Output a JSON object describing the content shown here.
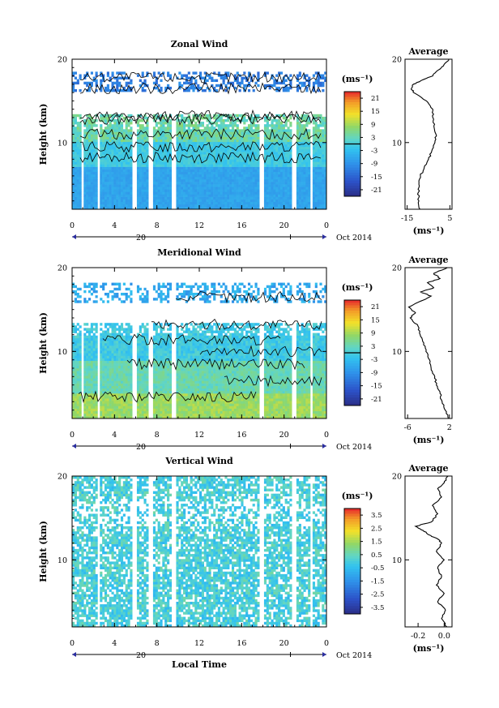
{
  "chart_data": [
    {
      "type": "heatmap",
      "title": "Zonal Wind",
      "ylabel": "Height (km)",
      "xlim": [
        0,
        24
      ],
      "ylim": [
        2,
        20
      ],
      "x_ticks": [
        "0",
        "4",
        "8",
        "12",
        "16",
        "20",
        "0"
      ],
      "y_ticks": [
        "10",
        "20"
      ],
      "date_ticks": [
        "20"
      ],
      "date_suffix": "Oct 2014",
      "colorbar": {
        "unit": "(ms⁻¹)",
        "ticks": [
          "21",
          "15",
          "9",
          "3",
          "-3",
          "-9",
          "-15",
          "-21"
        ],
        "range": [
          -24,
          24
        ],
        "contour_at": 0
      },
      "gaps_hours": [
        [
          0.85,
          1.05
        ],
        [
          2.3,
          2.6
        ],
        [
          5.6,
          6.1
        ],
        [
          7.3,
          7.6
        ],
        [
          9.3,
          9.9
        ],
        [
          17.6,
          18.0
        ],
        [
          20.8,
          21.1
        ],
        [
          22.4,
          22.7
        ]
      ],
      "profile": {
        "title": "Average",
        "xlabel": "(ms⁻¹)",
        "x_ticks": [
          "-15",
          "5"
        ],
        "y_ticks": [
          "10",
          "20"
        ],
        "xlim": [
          -16,
          6
        ],
        "ylim": [
          2,
          20
        ],
        "points": [
          [
            -9,
            2
          ],
          [
            -9.5,
            3
          ],
          [
            -9.8,
            4
          ],
          [
            -9.5,
            5
          ],
          [
            -8.8,
            6
          ],
          [
            -7,
            7
          ],
          [
            -5,
            8
          ],
          [
            -3.5,
            9
          ],
          [
            -2,
            10
          ],
          [
            -1.5,
            11
          ],
          [
            -2.5,
            12
          ],
          [
            -3,
            13
          ],
          [
            -3,
            14
          ],
          [
            -6,
            15
          ],
          [
            -12,
            16
          ],
          [
            -13,
            16.5
          ],
          [
            -12,
            17
          ],
          [
            -8,
            17.5
          ],
          [
            -3,
            18
          ],
          [
            -1,
            18.6
          ],
          [
            2,
            19.2
          ],
          [
            4.5,
            20
          ]
        ]
      }
    },
    {
      "type": "heatmap",
      "title": "Meridional Wind",
      "ylabel": "Height (km)",
      "xlim": [
        0,
        24
      ],
      "ylim": [
        2,
        20
      ],
      "x_ticks": [
        "0",
        "4",
        "8",
        "12",
        "16",
        "20",
        "0"
      ],
      "y_ticks": [
        "10",
        "20"
      ],
      "date_ticks": [
        "20"
      ],
      "date_suffix": "Oct 2014",
      "colorbar": {
        "unit": "(ms⁻¹)",
        "ticks": [
          "21",
          "15",
          "9",
          "3",
          "-3",
          "-9",
          "-15",
          "-21"
        ],
        "range": [
          -24,
          24
        ],
        "contour_at": 0
      },
      "gaps_hours": [
        [
          0.85,
          1.05
        ],
        [
          2.3,
          2.6
        ],
        [
          5.6,
          6.1
        ],
        [
          7.3,
          7.6
        ],
        [
          9.3,
          9.9
        ],
        [
          17.6,
          18.0
        ],
        [
          20.8,
          21.1
        ],
        [
          22.4,
          22.7
        ]
      ],
      "profile": {
        "title": "Average",
        "xlabel": "(ms⁻¹)",
        "x_ticks": [
          "-6",
          "2"
        ],
        "y_ticks": [
          "10",
          "20"
        ],
        "xlim": [
          -6.5,
          2.5
        ],
        "ylim": [
          2,
          20
        ],
        "points": [
          [
            1.8,
            2
          ],
          [
            1.2,
            3
          ],
          [
            0.6,
            4
          ],
          [
            0.2,
            5
          ],
          [
            -0.5,
            6
          ],
          [
            -0.8,
            7
          ],
          [
            -1.5,
            8
          ],
          [
            -1.8,
            9
          ],
          [
            -2.5,
            10
          ],
          [
            -2.9,
            11
          ],
          [
            -3.6,
            12
          ],
          [
            -4,
            13
          ],
          [
            -5.5,
            14
          ],
          [
            -4.5,
            14.6
          ],
          [
            -5.8,
            15.3
          ],
          [
            -3.5,
            16
          ],
          [
            -1.5,
            16.6
          ],
          [
            -3.5,
            17.1
          ],
          [
            -1,
            17.6
          ],
          [
            -2.2,
            18.2
          ],
          [
            0.2,
            18.7
          ],
          [
            -1,
            19.3
          ],
          [
            1.6,
            20
          ]
        ]
      }
    },
    {
      "type": "heatmap",
      "title": "Vertical Wind",
      "ylabel": "Height (km)",
      "xlabel": "Local Time",
      "xlim": [
        0,
        24
      ],
      "ylim": [
        2,
        20
      ],
      "x_ticks": [
        "0",
        "4",
        "8",
        "12",
        "16",
        "20",
        "0"
      ],
      "y_ticks": [
        "10",
        "20"
      ],
      "date_ticks": [
        "20"
      ],
      "date_suffix": "Oct 2014",
      "colorbar": {
        "unit": "(ms⁻¹)",
        "ticks": [
          "3.5",
          "2.5",
          "1.5",
          "0.5",
          "-0.5",
          "-1.5",
          "-2.5",
          "-3.5"
        ],
        "range": [
          -4,
          4
        ]
      },
      "gaps_hours": [
        [
          2.3,
          2.6
        ],
        [
          5.6,
          6.1
        ],
        [
          7.3,
          7.6
        ],
        [
          9.3,
          9.9
        ],
        [
          17.6,
          18.0
        ],
        [
          20.8,
          21.1
        ],
        [
          22.4,
          22.7
        ]
      ],
      "profile": {
        "title": "Average",
        "xlabel": "(ms⁻¹)",
        "x_ticks": [
          "-0.2",
          "0.0"
        ],
        "y_ticks": [
          "10",
          "20"
        ],
        "xlim": [
          -0.3,
          0.06
        ],
        "ylim": [
          2,
          20
        ],
        "points": [
          [
            0.02,
            2
          ],
          [
            -0.02,
            3
          ],
          [
            0.01,
            4
          ],
          [
            -0.05,
            5
          ],
          [
            0,
            6
          ],
          [
            -0.06,
            7
          ],
          [
            -0.02,
            8
          ],
          [
            -0.05,
            9
          ],
          [
            0,
            10
          ],
          [
            -0.06,
            11
          ],
          [
            -0.02,
            12
          ],
          [
            -0.05,
            12.5
          ],
          [
            -0.12,
            13
          ],
          [
            -0.16,
            13.5
          ],
          [
            -0.22,
            14
          ],
          [
            -0.1,
            14.5
          ],
          [
            -0.05,
            15.5
          ],
          [
            -0.09,
            16.5
          ],
          [
            -0.02,
            17.5
          ],
          [
            -0.05,
            18.5
          ],
          [
            0,
            19.2
          ],
          [
            0.03,
            20
          ]
        ]
      }
    }
  ]
}
